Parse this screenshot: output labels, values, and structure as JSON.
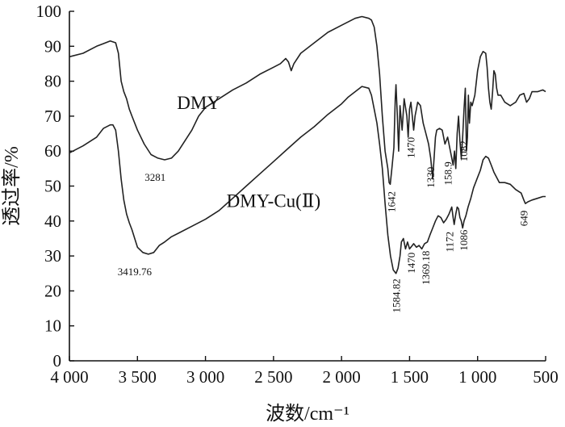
{
  "chart_data": {
    "type": "line",
    "title": "",
    "xlabel": "波数/cm⁻¹",
    "ylabel": "透过率/%",
    "xlim": [
      4000,
      500
    ],
    "ylim": [
      0,
      100
    ],
    "x_reversed": true,
    "grid": false,
    "x_ticks": [
      4000,
      3500,
      3000,
      2500,
      2000,
      1500,
      1000,
      500
    ],
    "x_tick_labels": [
      "4 000",
      "3 500",
      "3 000",
      "2 500",
      "2 000",
      "1 500",
      "1 000",
      "500"
    ],
    "y_ticks": [
      0,
      10,
      20,
      30,
      40,
      50,
      60,
      70,
      80,
      90,
      100
    ],
    "y_tick_labels": [
      "0",
      "10",
      "20",
      "30",
      "40",
      "50",
      "60",
      "70",
      "80",
      "90",
      "100"
    ],
    "series": [
      {
        "name": "DMY",
        "color": "#222222",
        "points": [
          [
            4000,
            87
          ],
          [
            3900,
            88
          ],
          [
            3800,
            90
          ],
          [
            3700,
            91.5
          ],
          [
            3660,
            91
          ],
          [
            3640,
            88
          ],
          [
            3620,
            80
          ],
          [
            3600,
            77
          ],
          [
            3580,
            75
          ],
          [
            3560,
            72
          ],
          [
            3540,
            70
          ],
          [
            3500,
            66
          ],
          [
            3450,
            62
          ],
          [
            3400,
            59
          ],
          [
            3350,
            58
          ],
          [
            3300,
            57.5
          ],
          [
            3250,
            58
          ],
          [
            3200,
            60
          ],
          [
            3150,
            63
          ],
          [
            3100,
            66
          ],
          [
            3050,
            70
          ],
          [
            3000,
            72.5
          ],
          [
            2900,
            75
          ],
          [
            2800,
            77.5
          ],
          [
            2700,
            79.5
          ],
          [
            2600,
            82
          ],
          [
            2500,
            84
          ],
          [
            2450,
            85
          ],
          [
            2410,
            86.5
          ],
          [
            2390,
            85.5
          ],
          [
            2370,
            83
          ],
          [
            2350,
            85
          ],
          [
            2300,
            88
          ],
          [
            2200,
            91
          ],
          [
            2100,
            94
          ],
          [
            2000,
            96
          ],
          [
            1900,
            98
          ],
          [
            1850,
            98.5
          ],
          [
            1800,
            98
          ],
          [
            1780,
            97.5
          ],
          [
            1760,
            95.5
          ],
          [
            1740,
            90
          ],
          [
            1720,
            82
          ],
          [
            1700,
            70
          ],
          [
            1680,
            60
          ],
          [
            1660,
            55
          ],
          [
            1650,
            51
          ],
          [
            1642,
            50.5
          ],
          [
            1630,
            55
          ],
          [
            1615,
            61
          ],
          [
            1605,
            75
          ],
          [
            1600,
            79
          ],
          [
            1590,
            70
          ],
          [
            1580,
            60
          ],
          [
            1570,
            73
          ],
          [
            1555,
            66
          ],
          [
            1540,
            75
          ],
          [
            1520,
            70
          ],
          [
            1510,
            64
          ],
          [
            1500,
            72
          ],
          [
            1490,
            74
          ],
          [
            1480,
            70
          ],
          [
            1470,
            66
          ],
          [
            1460,
            70
          ],
          [
            1450,
            72
          ],
          [
            1440,
            74
          ],
          [
            1420,
            73
          ],
          [
            1400,
            68
          ],
          [
            1380,
            65
          ],
          [
            1360,
            62
          ],
          [
            1345,
            58
          ],
          [
            1330,
            52
          ],
          [
            1320,
            58
          ],
          [
            1310,
            64
          ],
          [
            1300,
            66
          ],
          [
            1280,
            66.5
          ],
          [
            1260,
            66
          ],
          [
            1240,
            62
          ],
          [
            1220,
            64
          ],
          [
            1200,
            60
          ],
          [
            1180,
            56
          ],
          [
            1170,
            60
          ],
          [
            1160,
            55
          ],
          [
            1150,
            65
          ],
          [
            1140,
            70
          ],
          [
            1130,
            63
          ],
          [
            1120,
            58
          ],
          [
            1110,
            64
          ],
          [
            1100,
            72
          ],
          [
            1090,
            78
          ],
          [
            1082,
            60
          ],
          [
            1075,
            64
          ],
          [
            1068,
            76
          ],
          [
            1060,
            68
          ],
          [
            1050,
            74
          ],
          [
            1040,
            73
          ],
          [
            1020,
            76
          ],
          [
            1000,
            83
          ],
          [
            980,
            87
          ],
          [
            960,
            88.5
          ],
          [
            940,
            88
          ],
          [
            930,
            84
          ],
          [
            920,
            78
          ],
          [
            910,
            74
          ],
          [
            900,
            72
          ],
          [
            890,
            77
          ],
          [
            880,
            83
          ],
          [
            870,
            82
          ],
          [
            860,
            78
          ],
          [
            850,
            76
          ],
          [
            830,
            76
          ],
          [
            800,
            74
          ],
          [
            760,
            73
          ],
          [
            720,
            74
          ],
          [
            690,
            76
          ],
          [
            660,
            76.5
          ],
          [
            640,
            74
          ],
          [
            620,
            75
          ],
          [
            600,
            77
          ],
          [
            560,
            77
          ],
          [
            520,
            77.5
          ],
          [
            500,
            77
          ]
        ]
      },
      {
        "name": "DMY-Cu(Ⅱ)",
        "color": "#222222",
        "points": [
          [
            4000,
            59.5
          ],
          [
            3900,
            61.5
          ],
          [
            3800,
            64
          ],
          [
            3750,
            66.5
          ],
          [
            3700,
            67.5
          ],
          [
            3680,
            67.5
          ],
          [
            3660,
            66
          ],
          [
            3640,
            60
          ],
          [
            3620,
            52
          ],
          [
            3600,
            46
          ],
          [
            3580,
            42
          ],
          [
            3560,
            39.5
          ],
          [
            3540,
            37.5
          ],
          [
            3520,
            35
          ],
          [
            3500,
            32.5
          ],
          [
            3460,
            31
          ],
          [
            3420,
            30.5
          ],
          [
            3380,
            31
          ],
          [
            3340,
            33
          ],
          [
            3300,
            34
          ],
          [
            3250,
            35.5
          ],
          [
            3200,
            36.5
          ],
          [
            3100,
            38.5
          ],
          [
            3000,
            40.5
          ],
          [
            2900,
            43
          ],
          [
            2800,
            46.5
          ],
          [
            2700,
            50
          ],
          [
            2600,
            53.5
          ],
          [
            2500,
            57
          ],
          [
            2400,
            60.5
          ],
          [
            2300,
            64
          ],
          [
            2200,
            67
          ],
          [
            2100,
            70.5
          ],
          [
            2000,
            73.5
          ],
          [
            1950,
            75.5
          ],
          [
            1900,
            77
          ],
          [
            1850,
            78.5
          ],
          [
            1800,
            78
          ],
          [
            1780,
            76
          ],
          [
            1760,
            72
          ],
          [
            1740,
            68
          ],
          [
            1720,
            62
          ],
          [
            1700,
            55
          ],
          [
            1680,
            45
          ],
          [
            1660,
            36
          ],
          [
            1640,
            30
          ],
          [
            1620,
            26
          ],
          [
            1600,
            25
          ],
          [
            1585,
            26.5
          ],
          [
            1570,
            30
          ],
          [
            1560,
            34
          ],
          [
            1545,
            35
          ],
          [
            1530,
            32
          ],
          [
            1515,
            34
          ],
          [
            1500,
            32
          ],
          [
            1480,
            33
          ],
          [
            1470,
            33.5
          ],
          [
            1450,
            32.5
          ],
          [
            1430,
            33
          ],
          [
            1410,
            32
          ],
          [
            1390,
            33.5
          ],
          [
            1369,
            34
          ],
          [
            1350,
            36
          ],
          [
            1330,
            38
          ],
          [
            1310,
            40
          ],
          [
            1290,
            41.5
          ],
          [
            1270,
            41
          ],
          [
            1250,
            39.5
          ],
          [
            1230,
            40.5
          ],
          [
            1210,
            42
          ],
          [
            1190,
            44
          ],
          [
            1180,
            41
          ],
          [
            1172,
            39
          ],
          [
            1160,
            42
          ],
          [
            1150,
            44
          ],
          [
            1140,
            43.5
          ],
          [
            1130,
            41
          ],
          [
            1120,
            40
          ],
          [
            1110,
            38
          ],
          [
            1100,
            40
          ],
          [
            1086,
            41.5
          ],
          [
            1070,
            44
          ],
          [
            1050,
            46.5
          ],
          [
            1030,
            49.5
          ],
          [
            1000,
            52.5
          ],
          [
            980,
            54.5
          ],
          [
            960,
            57.5
          ],
          [
            940,
            58.5
          ],
          [
            920,
            58
          ],
          [
            900,
            56
          ],
          [
            880,
            54
          ],
          [
            860,
            52.5
          ],
          [
            840,
            51
          ],
          [
            800,
            51
          ],
          [
            760,
            50.5
          ],
          [
            720,
            49
          ],
          [
            680,
            48
          ],
          [
            660,
            46
          ],
          [
            649,
            45
          ],
          [
            630,
            45.5
          ],
          [
            600,
            46
          ],
          [
            560,
            46.5
          ],
          [
            520,
            47
          ],
          [
            500,
            47
          ]
        ]
      }
    ],
    "annotations": [
      {
        "text": "DMY",
        "x": 3050,
        "y": 72,
        "style": "series-label",
        "rotate": false
      },
      {
        "text": "DMY-Cu(Ⅱ)",
        "x": 2500,
        "y": 44,
        "style": "series-label",
        "rotate": false
      },
      {
        "text": "3281",
        "x": 3370,
        "y": 51.5,
        "style": "ann",
        "rotate": false
      },
      {
        "text": "3419.76",
        "x": 3520,
        "y": 24.5,
        "style": "ann",
        "rotate": false
      },
      {
        "text": "1642",
        "x": 1605,
        "y": 48.5,
        "style": "ann",
        "rotate": true
      },
      {
        "text": "1470",
        "x": 1465,
        "y": 64,
        "style": "ann",
        "rotate": true
      },
      {
        "text": "1330",
        "x": 1318,
        "y": 55.5,
        "style": "ann",
        "rotate": true
      },
      {
        "text": "158.9",
        "x": 1190,
        "y": 57,
        "style": "ann",
        "rotate": true
      },
      {
        "text": "1082",
        "x": 1075,
        "y": 63,
        "style": "ann",
        "rotate": true
      },
      {
        "text": "1584.82",
        "x": 1572,
        "y": 23.5,
        "style": "ann",
        "rotate": true
      },
      {
        "text": "1470",
        "x": 1462,
        "y": 31,
        "style": "ann",
        "rotate": true
      },
      {
        "text": "1369.18",
        "x": 1355,
        "y": 31.5,
        "style": "ann",
        "rotate": true
      },
      {
        "text": "1172",
        "x": 1178,
        "y": 37,
        "style": "ann",
        "rotate": true
      },
      {
        "text": "1086",
        "x": 1075,
        "y": 37.5,
        "style": "ann",
        "rotate": true
      },
      {
        "text": "649",
        "x": 632,
        "y": 43,
        "style": "ann",
        "rotate": true
      }
    ]
  }
}
